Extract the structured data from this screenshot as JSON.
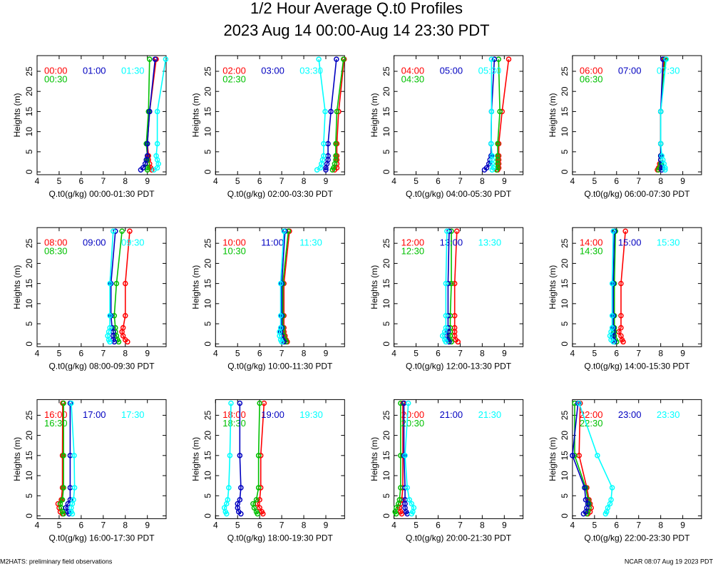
{
  "page": {
    "title": "1/2 Hour Average Q.t0 Profiles",
    "subtitle": "2023 Aug 14 00:00-Aug 14 23:30 PDT",
    "footer_left": "M2HATS: preliminary field observations",
    "footer_right": "NCAR 08:07 Aug 19 2023 PDT"
  },
  "chart_data": [
    {
      "type": "line",
      "xlabel": "Q.t0(g/kg) 00:00-01:30 PDT",
      "ylabel": "Heights (m)",
      "xlim": [
        4,
        9.85
      ],
      "xticks": [
        4,
        5,
        6,
        7,
        8,
        9
      ],
      "ylim": [
        -0.7,
        28.9
      ],
      "yticks": [
        0,
        5,
        10,
        15,
        20,
        25
      ],
      "y": [
        0.5,
        1,
        2,
        3,
        4,
        7,
        15,
        28
      ],
      "series": [
        {
          "name": "00:00",
          "color": "#ff0000",
          "x": [
            9.2,
            9.15,
            9.1,
            9.05,
            9.05,
            9.0,
            9.1,
            9.4
          ]
        },
        {
          "name": "00:30",
          "color": "#00c000",
          "x": [
            9.0,
            9.0,
            9.0,
            9.0,
            9.0,
            8.95,
            9.05,
            9.1
          ]
        },
        {
          "name": "01:00",
          "color": "#0000c0",
          "x": [
            8.7,
            8.8,
            8.9,
            8.95,
            9.0,
            9.0,
            9.1,
            9.35
          ]
        },
        {
          "name": "01:30",
          "color": "#00ffff",
          "x": [
            9.3,
            9.45,
            9.5,
            9.45,
            9.4,
            9.45,
            9.45,
            9.83
          ]
        }
      ]
    },
    {
      "type": "line",
      "xlabel": "Q.t0(g/kg) 02:00-03:30 PDT",
      "ylabel": "Heights (m)",
      "xlim": [
        4,
        9.85
      ],
      "xticks": [
        4,
        5,
        6,
        7,
        8,
        9
      ],
      "ylim": [
        -0.7,
        28.9
      ],
      "yticks": [
        0,
        5,
        10,
        15,
        20,
        25
      ],
      "y": [
        0.5,
        1,
        2,
        3,
        4,
        7,
        15,
        28
      ],
      "series": [
        {
          "name": "02:00",
          "color": "#ff0000",
          "x": [
            9.4,
            9.5,
            9.5,
            9.5,
            9.5,
            9.5,
            9.58,
            9.83
          ]
        },
        {
          "name": "02:30",
          "color": "#00c000",
          "x": [
            9.3,
            9.35,
            9.4,
            9.45,
            9.45,
            9.45,
            9.5,
            9.8
          ]
        },
        {
          "name": "03:00",
          "color": "#0000c0",
          "x": [
            9.0,
            9.0,
            9.05,
            9.1,
            9.1,
            9.1,
            9.23,
            9.48
          ]
        },
        {
          "name": "03:30",
          "color": "#00ffff",
          "x": [
            8.6,
            8.75,
            8.8,
            8.85,
            8.9,
            8.9,
            8.97,
            8.68
          ]
        }
      ]
    },
    {
      "type": "line",
      "xlabel": "Q.t0(g/kg) 04:00-05:30 PDT",
      "ylabel": "Heights (m)",
      "xlim": [
        4,
        9.85
      ],
      "xticks": [
        4,
        5,
        6,
        7,
        8,
        9
      ],
      "ylim": [
        -0.7,
        28.9
      ],
      "yticks": [
        0,
        5,
        10,
        15,
        20,
        25
      ],
      "y": [
        0.5,
        1,
        2,
        3,
        4,
        7,
        15,
        28
      ],
      "series": [
        {
          "name": "04:00",
          "color": "#ff0000",
          "x": [
            8.7,
            8.75,
            8.75,
            8.75,
            8.75,
            8.75,
            8.9,
            9.2
          ]
        },
        {
          "name": "04:30",
          "color": "#00c000",
          "x": [
            8.65,
            8.7,
            8.7,
            8.7,
            8.7,
            8.7,
            8.8,
            8.74
          ]
        },
        {
          "name": "05:00",
          "color": "#0000c0",
          "x": [
            8.1,
            8.2,
            8.3,
            8.35,
            8.4,
            8.4,
            8.42,
            8.55
          ]
        },
        {
          "name": "05:30",
          "color": "#00ffff",
          "x": [
            8.45,
            8.5,
            8.45,
            8.45,
            8.45,
            8.4,
            8.42,
            8.42
          ]
        }
      ]
    },
    {
      "type": "line",
      "xlabel": "Q.t0(g/kg) 06:00-07:30 PDT",
      "ylabel": "Heights (m)",
      "xlim": [
        4,
        9.85
      ],
      "xticks": [
        4,
        5,
        6,
        7,
        8,
        9
      ],
      "ylim": [
        -0.7,
        28.9
      ],
      "yticks": [
        0,
        5,
        10,
        15,
        20,
        25
      ],
      "y": [
        0.5,
        1,
        2,
        3,
        4,
        7,
        15,
        28
      ],
      "series": [
        {
          "name": "06:00",
          "color": "#ff0000",
          "x": [
            7.85,
            7.9,
            7.95,
            8.0,
            8.0,
            8.0,
            8.0,
            8.15
          ]
        },
        {
          "name": "06:30",
          "color": "#00c000",
          "x": [
            7.9,
            7.95,
            8.0,
            8.0,
            8.0,
            8.0,
            8.0,
            8.2
          ]
        },
        {
          "name": "07:00",
          "color": "#0000c0",
          "x": [
            8.05,
            8.05,
            8.05,
            8.0,
            8.0,
            8.0,
            8.0,
            8.1
          ]
        },
        {
          "name": "07:30",
          "color": "#00ffff",
          "x": [
            8.2,
            8.2,
            8.15,
            8.1,
            8.05,
            8.0,
            8.0,
            8.25
          ]
        }
      ]
    },
    {
      "type": "line",
      "xlabel": "Q.t0(g/kg) 08:00-09:30 PDT",
      "ylabel": "Heights (m)",
      "xlim": [
        4,
        9.85
      ],
      "xticks": [
        4,
        5,
        6,
        7,
        8,
        9
      ],
      "ylim": [
        -0.7,
        28.9
      ],
      "yticks": [
        0,
        5,
        10,
        15,
        20,
        25
      ],
      "y": [
        0.5,
        1,
        2,
        3,
        4,
        7,
        15,
        28
      ],
      "series": [
        {
          "name": "08:00",
          "color": "#ff0000",
          "x": [
            8.1,
            8.0,
            7.9,
            7.85,
            7.9,
            8.0,
            8.0,
            8.2
          ]
        },
        {
          "name": "08:30",
          "color": "#00c000",
          "x": [
            7.7,
            7.65,
            7.6,
            7.55,
            7.55,
            7.5,
            7.6,
            7.85
          ]
        },
        {
          "name": "09:00",
          "color": "#0000c0",
          "x": [
            7.5,
            7.45,
            7.45,
            7.45,
            7.4,
            7.35,
            7.35,
            7.55
          ]
        },
        {
          "name": "09:30",
          "color": "#00ffff",
          "x": [
            7.3,
            7.25,
            7.2,
            7.25,
            7.3,
            7.3,
            7.3,
            7.45
          ]
        }
      ]
    },
    {
      "type": "line",
      "xlabel": "Q.t0(g/kg) 10:00-11:30 PDT",
      "ylabel": "Heights (m)",
      "xlim": [
        4,
        9.85
      ],
      "xticks": [
        4,
        5,
        6,
        7,
        8,
        9
      ],
      "ylim": [
        -0.7,
        28.9
      ],
      "yticks": [
        0,
        5,
        10,
        15,
        20,
        25
      ],
      "y": [
        0.5,
        1,
        2,
        3,
        4,
        7,
        15,
        28
      ],
      "series": [
        {
          "name": "10:00",
          "color": "#ff0000",
          "x": [
            7.25,
            7.2,
            7.15,
            7.1,
            7.1,
            7.1,
            7.1,
            7.35
          ]
        },
        {
          "name": "10:30",
          "color": "#00c000",
          "x": [
            7.2,
            7.15,
            7.1,
            7.05,
            7.05,
            7.05,
            7.05,
            7.3
          ]
        },
        {
          "name": "11:00",
          "color": "#0000c0",
          "x": [
            7.1,
            7.05,
            7.0,
            6.95,
            7.0,
            7.0,
            7.0,
            7.15
          ]
        },
        {
          "name": "11:30",
          "color": "#00ffff",
          "x": [
            7.0,
            6.95,
            6.9,
            6.9,
            6.95,
            6.95,
            6.95,
            7.1
          ]
        }
      ]
    },
    {
      "type": "line",
      "xlabel": "Q.t0(g/kg) 12:00-13:30 PDT",
      "ylabel": "Heights (m)",
      "xlim": [
        4,
        9.85
      ],
      "xticks": [
        4,
        5,
        6,
        7,
        8,
        9
      ],
      "ylim": [
        -0.7,
        28.9
      ],
      "yticks": [
        0,
        5,
        10,
        15,
        20,
        25
      ],
      "y": [
        0.5,
        1,
        2,
        3,
        4,
        7,
        15,
        28
      ],
      "series": [
        {
          "name": "12:00",
          "color": "#ff0000",
          "x": [
            6.9,
            6.8,
            6.75,
            6.75,
            6.75,
            6.75,
            6.75,
            6.85
          ]
        },
        {
          "name": "12:30",
          "color": "#00c000",
          "x": [
            6.6,
            6.55,
            6.55,
            6.55,
            6.55,
            6.55,
            6.6,
            6.6
          ]
        },
        {
          "name": "13:00",
          "color": "#0000c0",
          "x": [
            6.5,
            6.45,
            6.4,
            6.45,
            6.45,
            6.45,
            6.45,
            6.5
          ]
        },
        {
          "name": "13:30",
          "color": "#00ffff",
          "x": [
            6.35,
            6.3,
            6.2,
            6.3,
            6.35,
            6.35,
            6.35,
            6.4
          ]
        }
      ]
    },
    {
      "type": "line",
      "xlabel": "Q.t0(g/kg) 14:00-15:30 PDT",
      "ylabel": "Heights (m)",
      "xlim": [
        4,
        9.85
      ],
      "xticks": [
        4,
        5,
        6,
        7,
        8,
        9
      ],
      "ylim": [
        -0.7,
        28.9
      ],
      "yticks": [
        0,
        5,
        10,
        15,
        20,
        25
      ],
      "y": [
        0.5,
        1,
        2,
        3,
        4,
        7,
        15,
        28
      ],
      "series": [
        {
          "name": "14:00",
          "color": "#ff0000",
          "x": [
            6.3,
            6.25,
            6.2,
            6.1,
            6.2,
            6.2,
            6.2,
            6.4
          ]
        },
        {
          "name": "14:30",
          "color": "#00c000",
          "x": [
            6.0,
            5.95,
            5.9,
            5.9,
            5.9,
            5.9,
            5.9,
            5.95
          ]
        },
        {
          "name": "15:00",
          "color": "#0000c0",
          "x": [
            5.9,
            5.85,
            5.85,
            5.85,
            5.85,
            5.85,
            5.85,
            5.9
          ]
        },
        {
          "name": "15:30",
          "color": "#00ffff",
          "x": [
            5.85,
            5.75,
            5.7,
            5.75,
            5.8,
            5.8,
            5.8,
            5.85
          ]
        }
      ]
    },
    {
      "type": "line",
      "xlabel": "Q.t0(g/kg) 16:00-17:30 PDT",
      "ylabel": "Heights (m)",
      "xlim": [
        4,
        9.85
      ],
      "xticks": [
        4,
        5,
        6,
        7,
        8,
        9
      ],
      "ylim": [
        -0.7,
        28.9
      ],
      "yticks": [
        0,
        5,
        10,
        15,
        20,
        25
      ],
      "y": [
        0.5,
        1,
        2,
        3,
        4,
        7,
        15,
        28
      ],
      "series": [
        {
          "name": "16:00",
          "color": "#ff0000",
          "x": [
            5.15,
            5.05,
            5.0,
            4.95,
            5.1,
            5.15,
            5.15,
            5.16
          ]
        },
        {
          "name": "16:30",
          "color": "#00c000",
          "x": [
            5.2,
            5.15,
            5.1,
            5.05,
            5.15,
            5.2,
            5.2,
            5.2
          ]
        },
        {
          "name": "17:00",
          "color": "#0000c0",
          "x": [
            5.45,
            5.4,
            5.3,
            5.4,
            5.5,
            5.5,
            5.5,
            5.5
          ]
        },
        {
          "name": "17:30",
          "color": "#00ffff",
          "x": [
            5.6,
            5.55,
            5.55,
            5.6,
            5.65,
            5.7,
            5.68,
            5.55
          ]
        }
      ]
    },
    {
      "type": "line",
      "xlabel": "Q.t0(g/kg) 18:00-19:30 PDT",
      "ylabel": "Heights (m)",
      "xlim": [
        4,
        9.85
      ],
      "xticks": [
        4,
        5,
        6,
        7,
        8,
        9
      ],
      "ylim": [
        -0.7,
        28.9
      ],
      "yticks": [
        0,
        5,
        10,
        15,
        20,
        25
      ],
      "y": [
        0.5,
        1,
        2,
        3,
        4,
        7,
        15,
        28
      ],
      "series": [
        {
          "name": "18:00",
          "color": "#ff0000",
          "x": [
            6.15,
            6.1,
            6.0,
            5.9,
            6.0,
            6.05,
            6.05,
            6.2
          ]
        },
        {
          "name": "18:30",
          "color": "#00c000",
          "x": [
            5.9,
            5.85,
            5.75,
            5.7,
            5.85,
            5.95,
            5.95,
            6.0
          ]
        },
        {
          "name": "19:00",
          "color": "#0000c0",
          "x": [
            5.15,
            5.05,
            5.0,
            5.0,
            5.1,
            5.15,
            5.1,
            5.1
          ]
        },
        {
          "name": "19:30",
          "color": "#00ffff",
          "x": [
            4.5,
            4.45,
            4.4,
            4.5,
            4.55,
            4.6,
            4.65,
            4.7
          ]
        }
      ]
    },
    {
      "type": "line",
      "xlabel": "Q.t0(g/kg) 20:00-21:30 PDT",
      "ylabel": "Heights (m)",
      "xlim": [
        4,
        9.85
      ],
      "xticks": [
        4,
        5,
        6,
        7,
        8,
        9
      ],
      "ylim": [
        -0.7,
        28.9
      ],
      "yticks": [
        0,
        5,
        10,
        15,
        20,
        25
      ],
      "y": [
        0.5,
        1,
        2,
        3,
        4,
        7,
        15,
        28
      ],
      "series": [
        {
          "name": "20:00",
          "color": "#ff0000",
          "x": [
            4.35,
            4.3,
            4.25,
            4.3,
            4.35,
            4.4,
            4.4,
            4.4
          ]
        },
        {
          "name": "20:30",
          "color": "#00c000",
          "x": [
            4.1,
            4.05,
            4.1,
            4.2,
            4.25,
            4.3,
            4.3,
            4.3
          ]
        },
        {
          "name": "21:00",
          "color": "#0000c0",
          "x": [
            4.6,
            4.55,
            4.5,
            4.5,
            4.5,
            4.5,
            4.45,
            4.45
          ]
        },
        {
          "name": "21:30",
          "color": "#00ffff",
          "x": [
            4.8,
            4.85,
            4.9,
            4.8,
            4.7,
            4.6,
            4.5,
            4.65
          ]
        }
      ]
    },
    {
      "type": "line",
      "xlabel": "Q.t0(g/kg) 22:00-23:30 PDT",
      "ylabel": "Heights (m)",
      "xlim": [
        4,
        9.85
      ],
      "xticks": [
        4,
        5,
        6,
        7,
        8,
        9
      ],
      "ylim": [
        -0.7,
        28.9
      ],
      "yticks": [
        0,
        5,
        10,
        15,
        20,
        25
      ],
      "y": [
        0.5,
        1,
        2,
        3,
        4,
        7,
        15,
        28
      ],
      "series": [
        {
          "name": "22:00",
          "color": "#ff0000",
          "x": [
            4.7,
            4.8,
            4.85,
            4.8,
            4.75,
            4.65,
            4.3,
            4.35
          ]
        },
        {
          "name": "22:30",
          "color": "#00c000",
          "x": [
            4.65,
            4.7,
            4.75,
            4.75,
            4.7,
            4.6,
            4.1,
            4.1
          ]
        },
        {
          "name": "23:00",
          "color": "#0000c0",
          "x": [
            4.5,
            4.6,
            4.65,
            4.7,
            4.6,
            4.55,
            4.0,
            4.25
          ]
        },
        {
          "name": "23:30",
          "color": "#00ffff",
          "x": [
            5.5,
            5.55,
            5.6,
            5.7,
            5.75,
            5.8,
            5.13,
            4.3
          ]
        }
      ]
    }
  ]
}
